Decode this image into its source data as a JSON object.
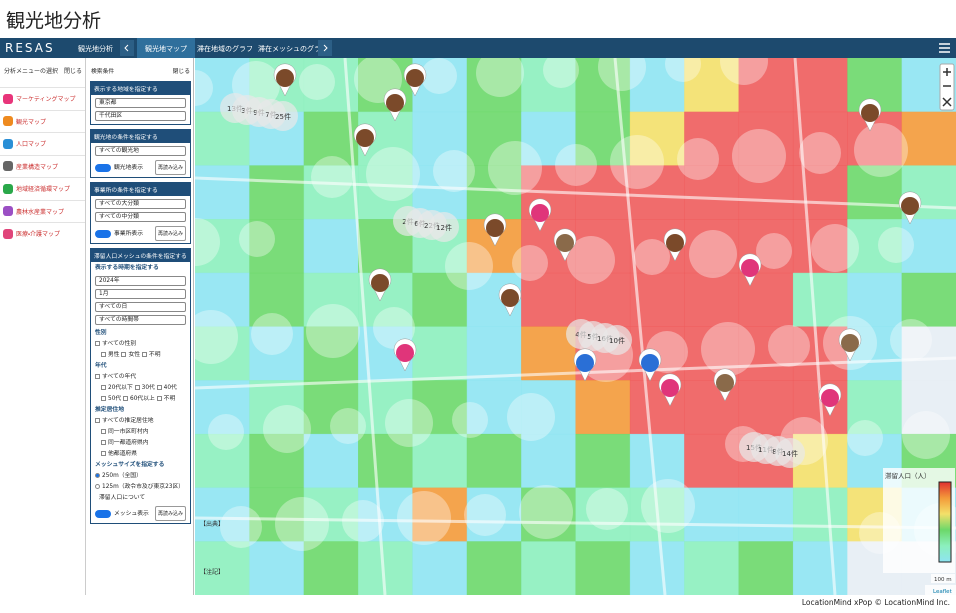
{
  "title": "観光地分析",
  "nav": {
    "logo": "RESAS",
    "section": "観光地分析",
    "tabs": [
      "観光地マップ",
      "滞在地域のグラフ",
      "滞在メッシュのグラフ"
    ]
  },
  "menu": {
    "heading": "分析メニューの選択",
    "close": "閉じる",
    "items": [
      "マーケティングマップ",
      "観光マップ",
      "人口マップ",
      "産業構造マップ",
      "地域経済循環マップ",
      "農林水産業マップ",
      "医療・介護マップ"
    ]
  },
  "panel": {
    "heading": "検索条件",
    "close": "閉じる",
    "area": {
      "heading": "表示する地域を指定する",
      "prefecture": "東京都",
      "city": "千代田区"
    },
    "spots": {
      "heading": "観光地の条件を指定する",
      "select": "すべての観光地",
      "toggle": "観光地表示",
      "reload": "再読み込み"
    },
    "offices": {
      "heading": "事業所の条件を指定する",
      "selects": [
        "すべての大分類",
        "すべての中分類"
      ],
      "toggle": "事業所表示",
      "reload": "再読み込み"
    },
    "mesh": {
      "heading": "滞留人口メッシュの条件を指定する",
      "period": "表示する時期を指定する",
      "selects": [
        "2024年",
        "1月",
        "すべての日",
        "すべての時間帯"
      ],
      "gender": {
        "label": "性別",
        "all": "すべての性別",
        "options": [
          "男性",
          "女性",
          "不明"
        ]
      },
      "age": {
        "label": "年代",
        "all": "すべての年代",
        "options": [
          "20代以下",
          "30代",
          "40代",
          "50代",
          "60代以上",
          "不明"
        ]
      },
      "residence": {
        "label": "推定居住地",
        "all": "すべての推定居住地",
        "options": [
          "同一市区町村内",
          "同一都道府県内",
          "他都道府県"
        ]
      },
      "size": {
        "label": "メッシュサイズを指定する",
        "options": [
          "250m（全国）",
          "125m（政令市及び東京23区）"
        ]
      },
      "about": "滞留人口について",
      "toggle": "メッシュ表示",
      "reload": "再読み込み"
    }
  },
  "map": {
    "labels": [
      "13件",
      "2件",
      "4件",
      "15件",
      "3件",
      "6件",
      "5件",
      "11件",
      "9件",
      "22件",
      "16件",
      "8件",
      "7件",
      "12件",
      "10件",
      "14件",
      "25件"
    ],
    "legend_title": "滞留人口（人）",
    "notes": [
      "【出典】",
      "【注記】"
    ],
    "scale": "100 m",
    "attribution": "Leaflet"
  },
  "footer": "LocationMind xPop © LocationMind Inc."
}
